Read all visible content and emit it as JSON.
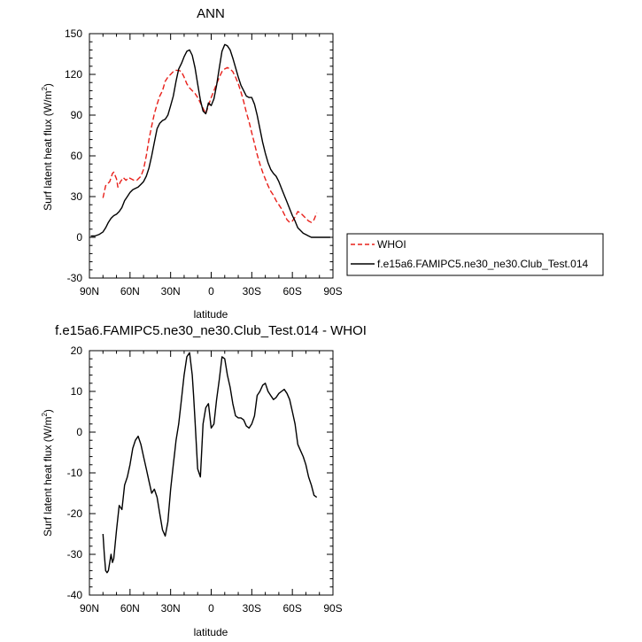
{
  "chart_data": [
    {
      "type": "line",
      "title": "ANN",
      "xlabel": "latitude",
      "ylabel": "Surf latent heat flux (W/m",
      "ylabel_sup": "2",
      "ylabel_close": ")",
      "xlim": [
        90,
        -90
      ],
      "ylim": [
        -30,
        150
      ],
      "x_ticks": [
        90,
        60,
        30,
        0,
        -30,
        -60,
        -90
      ],
      "x_tick_labels": [
        "90N",
        "60N",
        "30N",
        "0",
        "30S",
        "60S",
        "90S"
      ],
      "y_ticks": [
        -30,
        0,
        30,
        60,
        90,
        120,
        150
      ],
      "y_tick_labels": [
        "-30",
        "0",
        "30",
        "60",
        "90",
        "120",
        "150"
      ],
      "legend_position": "right",
      "series": [
        {
          "name": "WHOI",
          "color": "#e8201a",
          "dashed": true,
          "x": [
            80,
            78,
            75,
            73,
            72,
            70,
            69,
            67,
            65,
            63,
            61,
            59,
            57,
            55,
            52,
            50,
            48,
            46,
            44,
            42,
            40,
            38,
            36,
            34,
            32,
            30,
            28,
            26,
            24,
            22,
            20,
            18,
            16,
            14,
            12,
            10,
            8,
            6,
            4,
            2,
            0,
            -2,
            -4,
            -6,
            -8,
            -10,
            -12,
            -14,
            -16,
            -18,
            -20,
            -22,
            -24,
            -26,
            -28,
            -30,
            -32,
            -34,
            -36,
            -38,
            -40,
            -42,
            -44,
            -46,
            -48,
            -50,
            -52,
            -54,
            -56,
            -58,
            -60,
            -62,
            -64,
            -66,
            -68,
            -70,
            -72,
            -74,
            -76,
            -78
          ],
          "y": [
            29,
            38,
            41,
            47,
            48,
            43,
            37,
            41,
            44,
            42,
            44,
            43,
            42,
            42,
            45,
            50,
            60,
            72,
            82,
            91,
            98,
            104,
            108,
            115,
            118,
            120,
            122,
            123,
            123,
            122,
            118,
            113,
            110,
            108,
            106,
            103,
            99,
            95,
            91,
            97,
            103,
            108,
            113,
            118,
            122,
            124,
            125,
            124,
            122,
            118,
            113,
            107,
            100,
            92,
            85,
            77,
            69,
            61,
            54,
            48,
            43,
            38,
            34,
            31,
            27,
            24,
            21,
            17,
            13,
            11,
            12,
            15,
            19,
            18,
            16,
            14,
            12,
            11,
            13,
            18
          ]
        },
        {
          "name": "f.e15a6.FAMIPC5.ne30_ne30.Club_Test.014",
          "color": "#000000",
          "dashed": false,
          "x": [
            89,
            86,
            83,
            80,
            78,
            76,
            74,
            72,
            70,
            68,
            66,
            64,
            62,
            60,
            58,
            56,
            54,
            52,
            50,
            48,
            46,
            44,
            42,
            40,
            38,
            36,
            34,
            32,
            30,
            28,
            26,
            24,
            22,
            20,
            18,
            16,
            14,
            12,
            10,
            8,
            6,
            4,
            2,
            0,
            -2,
            -4,
            -6,
            -8,
            -10,
            -12,
            -14,
            -16,
            -18,
            -20,
            -22,
            -24,
            -26,
            -28,
            -30,
            -32,
            -34,
            -36,
            -38,
            -40,
            -42,
            -44,
            -46,
            -48,
            -50,
            -52,
            -54,
            -56,
            -58,
            -60,
            -62,
            -64,
            -66,
            -68,
            -70,
            -72,
            -74,
            -76,
            -78,
            -80,
            -82,
            -84,
            -86,
            -88
          ],
          "y": [
            1,
            1,
            2,
            4,
            7,
            11,
            14,
            16,
            17,
            19,
            22,
            27,
            30,
            33,
            35,
            36,
            37,
            39,
            41,
            45,
            51,
            60,
            70,
            80,
            84,
            86,
            87,
            90,
            97,
            104,
            115,
            124,
            128,
            133,
            137,
            138,
            134,
            125,
            113,
            101,
            93,
            91,
            99,
            97,
            102,
            112,
            125,
            137,
            142,
            141,
            138,
            132,
            125,
            118,
            112,
            108,
            104,
            103,
            103,
            98,
            90,
            80,
            70,
            62,
            55,
            50,
            47,
            45,
            41,
            36,
            31,
            26,
            21,
            16,
            12,
            7,
            5,
            3,
            2,
            1,
            0,
            0,
            0,
            0,
            0,
            0,
            0,
            0
          ]
        }
      ]
    },
    {
      "type": "line",
      "title": "f.e15a6.FAMIPC5.ne30_ne30.Club_Test.014 - WHOI",
      "xlabel": "latitude",
      "ylabel": "Surf latent heat flux (W/m",
      "ylabel_sup": "2",
      "ylabel_close": ")",
      "xlim": [
        90,
        -90
      ],
      "ylim": [
        -40,
        20
      ],
      "x_ticks": [
        90,
        60,
        30,
        0,
        -30,
        -60,
        -90
      ],
      "x_tick_labels": [
        "90N",
        "60N",
        "30N",
        "0",
        "30S",
        "60S",
        "90S"
      ],
      "y_ticks": [
        -40,
        -30,
        -20,
        -10,
        0,
        10,
        20
      ],
      "y_tick_labels": [
        "-40",
        "-30",
        "-20",
        "-10",
        "0",
        "10",
        "20"
      ],
      "series": [
        {
          "color": "#000000",
          "dashed": false,
          "x": [
            80,
            79,
            78,
            77,
            76,
            75,
            74,
            73,
            72,
            70,
            68,
            66,
            64,
            62,
            60,
            58,
            56,
            54,
            52,
            50,
            48,
            46,
            44,
            42,
            40,
            38,
            36,
            34,
            32,
            30,
            28,
            27,
            26,
            24,
            22,
            20,
            18,
            16,
            14,
            13,
            12,
            10,
            8,
            6,
            4,
            2,
            0,
            -2,
            -4,
            -6,
            -8,
            -10,
            -12,
            -14,
            -16,
            -18,
            -20,
            -22,
            -24,
            -26,
            -28,
            -30,
            -32,
            -34,
            -36,
            -38,
            -40,
            -42,
            -44,
            -46,
            -48,
            -50,
            -52,
            -54,
            -56,
            -58,
            -60,
            -62,
            -64,
            -66,
            -68,
            -70,
            -72,
            -74,
            -76,
            -78
          ],
          "y": [
            -25,
            -30,
            -34,
            -34.5,
            -34,
            -32,
            -30,
            -32,
            -31,
            -24,
            -18,
            -19,
            -13,
            -11,
            -8,
            -4,
            -2,
            -1,
            -3,
            -6,
            -9,
            -12,
            -15,
            -14,
            -16,
            -20,
            -24,
            -25.5,
            -22,
            -14,
            -8,
            -5,
            -2,
            2,
            8,
            14,
            18.5,
            19.5,
            14,
            9,
            3,
            -9,
            -11,
            2,
            6,
            7,
            1,
            2,
            8,
            13,
            18.5,
            18,
            14,
            11,
            7,
            4,
            3.5,
            3.5,
            3,
            1.5,
            1,
            2,
            4,
            9,
            10,
            11.5,
            12,
            10,
            9,
            8,
            8.5,
            9.5,
            10,
            10.5,
            9.5,
            8,
            5,
            2,
            -3,
            -4.5,
            -6,
            -8,
            -11,
            -13,
            -15.5,
            -16
          ]
        }
      ]
    }
  ]
}
